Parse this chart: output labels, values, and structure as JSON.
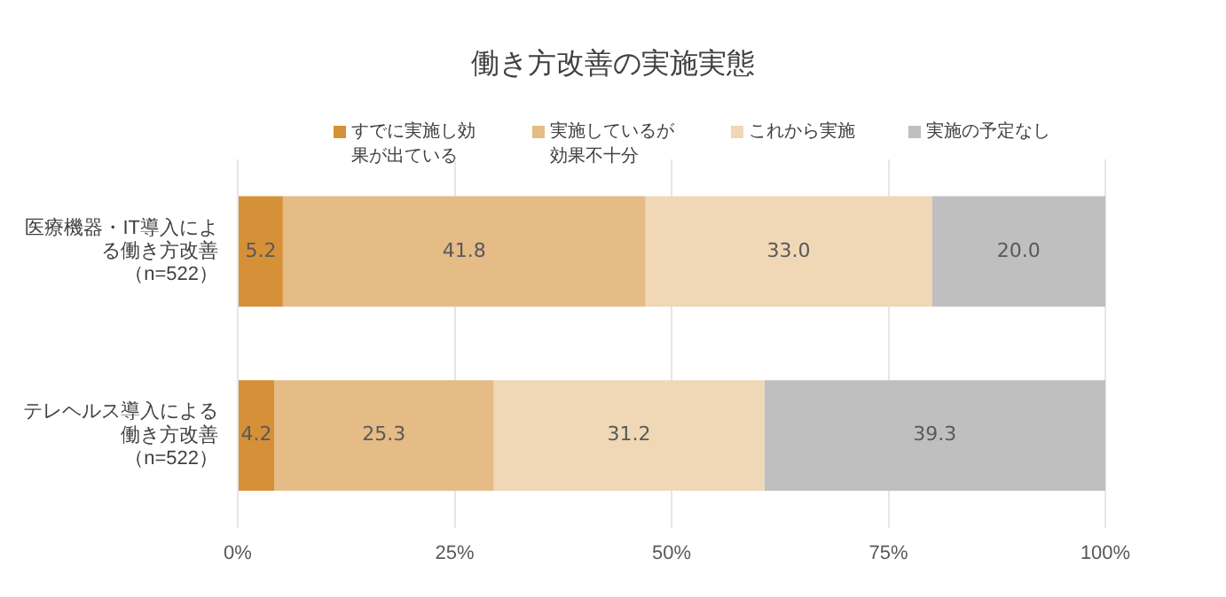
{
  "chart_data": {
    "type": "bar",
    "orientation": "horizontal",
    "stacked": true,
    "title": "働き方改善の実施実態",
    "categories": [
      "医療機器・IT導入による働き方改善（n=522）",
      "テレヘルス導入による働き方改善（n=522）"
    ],
    "series": [
      {
        "name": "すでに実施し効果が出ている",
        "color": "#d69038",
        "values": [
          5.2,
          4.2
        ],
        "value_labels": [
          "5.2",
          "4.2"
        ]
      },
      {
        "name": "実施しているが効果不十分",
        "color": "#e5bb86",
        "values": [
          41.8,
          25.3
        ],
        "value_labels": [
          "41.8",
          "25.3"
        ]
      },
      {
        "name": "これから実施",
        "color": "#f0d7b6",
        "values": [
          33,
          31.2
        ],
        "value_labels": [
          "33.0",
          "31.2"
        ]
      },
      {
        "name": "実施の予定なし",
        "color": "#bfbfbf",
        "values": [
          20,
          39.3
        ],
        "value_labels": [
          "20.0",
          "39.3"
        ]
      }
    ],
    "xlim": [
      0,
      100
    ],
    "xticks": [
      {
        "value": 0,
        "label": "0%"
      },
      {
        "value": 25,
        "label": "25%"
      },
      {
        "value": 50,
        "label": "50%"
      },
      {
        "value": 75,
        "label": "75%"
      },
      {
        "value": 100,
        "label": "100%"
      }
    ],
    "grid": "x",
    "legend": "top"
  }
}
